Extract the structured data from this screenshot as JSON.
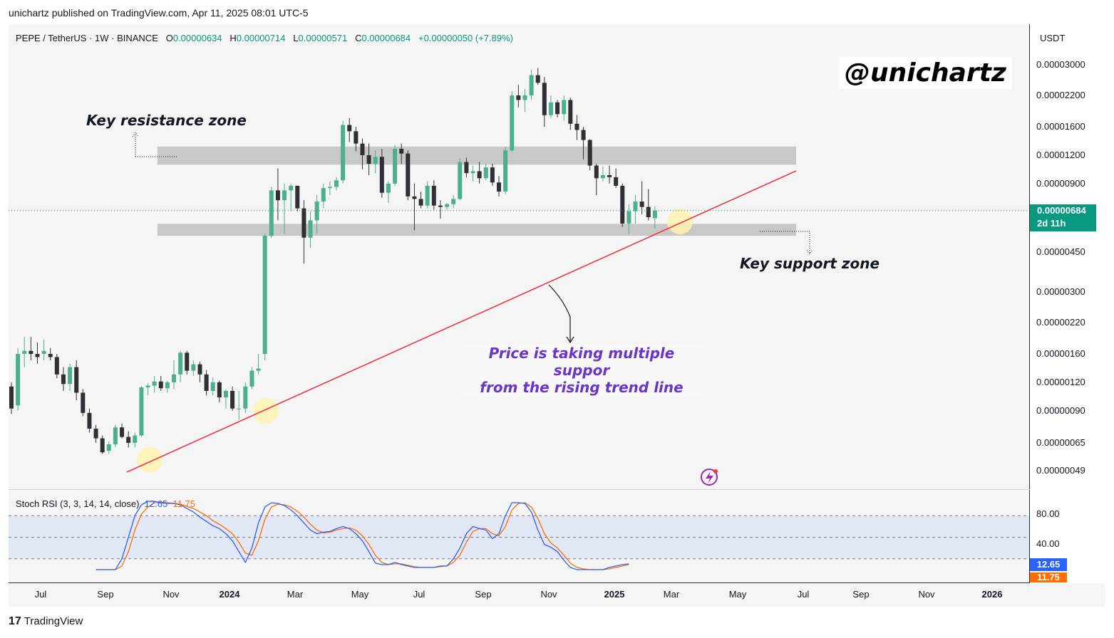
{
  "header": {
    "published": "unichartz published on TradingView.com, Apr 11, 2025 08:01 UTC-5"
  },
  "legend": {
    "symbol": "PEPE / TetherUS · 1W · BINANCE",
    "o_label": "O",
    "o": "0.00000634",
    "h_label": "H",
    "h": "0.00000714",
    "l_label": "L",
    "l": "0.00000571",
    "c_label": "C",
    "c": "0.00000684",
    "change": "+0.00000050 (+7.89%)"
  },
  "currency": "USDT",
  "watermark": "@unichartz",
  "annotations": {
    "resistance": "Key resistance zone",
    "support": "Key support zone",
    "trend_line_1": "Price is taking multiple suppor",
    "trend_line_2": "from the rising trend line"
  },
  "price_badge": {
    "price": "0.00000684",
    "countdown": "2d 11h"
  },
  "stoch": {
    "label": "Stoch RSI (3, 3, 14, 14, close)",
    "k_value": "12.65",
    "d_value": "11.75",
    "ticks": [
      "80.00",
      "40.00"
    ],
    "k_color": "#2962ff",
    "d_color": "#ff6d00"
  },
  "colors": {
    "up": "#4caf8f",
    "down": "#2f2f35",
    "trend": "#f23645",
    "zone": "#c8c8c8",
    "highlight": "#fff3b0"
  },
  "footer": {
    "brand": "TradingView",
    "logo": "tv-logo-icon"
  },
  "chart_data": {
    "type": "candlestick",
    "title": "PEPE / TetherUS · 1W · BINANCE",
    "scale": "log",
    "y_ticks": [
      "0.00003000",
      "0.00002200",
      "0.00001600",
      "0.00001200",
      "0.00000900",
      "0.00000684",
      "0.00000450",
      "0.00000300",
      "0.00000220",
      "0.00000160",
      "0.00000120",
      "0.00000090",
      "0.00000065",
      "0.00000049"
    ],
    "x_ticks": [
      "Jul",
      "Sep",
      "Nov",
      "2024",
      "Mar",
      "May",
      "Jul",
      "Sep",
      "Nov",
      "2025",
      "Mar",
      "May",
      "Jul",
      "Sep",
      "Nov",
      "2026"
    ],
    "candles": [
      {
        "o": 1.15e-06,
        "h": 1.2e-06,
        "l": 8.7e-07,
        "c": 9.2e-07
      },
      {
        "o": 9.5e-07,
        "h": 1.7e-06,
        "l": 9e-07,
        "c": 1.6e-06
      },
      {
        "o": 1.6e-06,
        "h": 1.9e-06,
        "l": 1.4e-06,
        "c": 1.65e-06
      },
      {
        "o": 1.65e-06,
        "h": 1.9e-06,
        "l": 1.5e-06,
        "c": 1.6e-06
      },
      {
        "o": 1.6e-06,
        "h": 1.8e-06,
        "l": 1.45e-06,
        "c": 1.55e-06
      },
      {
        "o": 1.6e-06,
        "h": 1.85e-06,
        "l": 1.5e-06,
        "c": 1.65e-06
      },
      {
        "o": 1.6e-06,
        "h": 1.7e-06,
        "l": 1.5e-06,
        "c": 1.55e-06
      },
      {
        "o": 1.55e-06,
        "h": 1.6e-06,
        "l": 1.25e-06,
        "c": 1.3e-06
      },
      {
        "o": 1.3e-06,
        "h": 1.4e-06,
        "l": 1.1e-06,
        "c": 1.18e-06
      },
      {
        "o": 1.18e-06,
        "h": 1.45e-06,
        "l": 1.1e-06,
        "c": 1.4e-06
      },
      {
        "o": 1.4e-06,
        "h": 1.5e-06,
        "l": 1e-06,
        "c": 1.08e-06
      },
      {
        "o": 1.08e-06,
        "h": 1.12e-06,
        "l": 8.5e-07,
        "c": 8.8e-07
      },
      {
        "o": 8.8e-07,
        "h": 9.2e-07,
        "l": 7.2e-07,
        "c": 7.5e-07
      },
      {
        "o": 7.5e-07,
        "h": 7.8e-07,
        "l": 6.5e-07,
        "c": 6.8e-07
      },
      {
        "o": 6.8e-07,
        "h": 7e-07,
        "l": 5.8e-07,
        "c": 5.9e-07
      },
      {
        "o": 6e-07,
        "h": 6.6e-07,
        "l": 5.8e-07,
        "c": 6.4e-07
      },
      {
        "o": 6.4e-07,
        "h": 7.8e-07,
        "l": 6.2e-07,
        "c": 7.6e-07
      },
      {
        "o": 7.6e-07,
        "h": 7.9e-07,
        "l": 6.8e-07,
        "c": 6.9e-07
      },
      {
        "o": 6.9e-07,
        "h": 7.3e-07,
        "l": 6.2e-07,
        "c": 6.5e-07
      },
      {
        "o": 6.5e-07,
        "h": 7.2e-07,
        "l": 6.2e-07,
        "c": 7e-07
      },
      {
        "o": 7e-07,
        "h": 1.16e-06,
        "l": 6.9e-07,
        "c": 1.14e-06
      },
      {
        "o": 1.14e-06,
        "h": 1.19e-06,
        "l": 1.05e-06,
        "c": 1.16e-06
      },
      {
        "o": 1.16e-06,
        "h": 1.28e-06,
        "l": 1.08e-06,
        "c": 1.21e-06
      },
      {
        "o": 1.21e-06,
        "h": 1.28e-06,
        "l": 1.1e-06,
        "c": 1.13e-06
      },
      {
        "o": 1.13e-06,
        "h": 1.22e-06,
        "l": 1.08e-06,
        "c": 1.2e-06
      },
      {
        "o": 1.2e-06,
        "h": 1.5e-06,
        "l": 1.12e-06,
        "c": 1.3e-06
      },
      {
        "o": 1.3e-06,
        "h": 1.65e-06,
        "l": 1.2e-06,
        "c": 1.62e-06
      },
      {
        "o": 1.62e-06,
        "h": 1.65e-06,
        "l": 1.3e-06,
        "c": 1.35e-06
      },
      {
        "o": 1.35e-06,
        "h": 1.5e-06,
        "l": 1.28e-06,
        "c": 1.44e-06
      },
      {
        "o": 1.44e-06,
        "h": 1.48e-06,
        "l": 1.2e-06,
        "c": 1.3e-06
      },
      {
        "o": 1.3e-06,
        "h": 1.36e-06,
        "l": 1.05e-06,
        "c": 1.1e-06
      },
      {
        "o": 1.1e-06,
        "h": 1.26e-06,
        "l": 1.05e-06,
        "c": 1.2e-06
      },
      {
        "o": 1.2e-06,
        "h": 1.22e-06,
        "l": 9.8e-07,
        "c": 1.03e-06
      },
      {
        "o": 1.03e-06,
        "h": 1.12e-06,
        "l": 9.2e-07,
        "c": 1.1e-06
      },
      {
        "o": 1.1e-06,
        "h": 1.15e-06,
        "l": 9e-07,
        "c": 9.2e-07
      },
      {
        "o": 9.2e-07,
        "h": 1.1e-06,
        "l": 8.2e-07,
        "c": 9.2e-07
      },
      {
        "o": 9.2e-07,
        "h": 1.2e-06,
        "l": 8.8e-07,
        "c": 1.15e-06
      },
      {
        "o": 1.15e-06,
        "h": 1.4e-06,
        "l": 1.12e-06,
        "c": 1.35e-06
      },
      {
        "o": 1.35e-06,
        "h": 1.6e-06,
        "l": 1.3e-06,
        "c": 1.38e-06
      },
      {
        "o": 1.6e-06,
        "h": 5.4e-06,
        "l": 1.5e-06,
        "c": 5.3e-06
      },
      {
        "o": 5.3e-06,
        "h": 8.7e-06,
        "l": 5.2e-06,
        "c": 8.4e-06
      },
      {
        "o": 8.4e-06,
        "h": 1.05e-05,
        "l": 6.2e-06,
        "c": 7.6e-06
      },
      {
        "o": 7.6e-06,
        "h": 9e-06,
        "l": 5.4e-06,
        "c": 8.4e-06
      },
      {
        "o": 8.4e-06,
        "h": 9e-06,
        "l": 6.8e-06,
        "c": 8.8e-06
      },
      {
        "o": 8.8e-06,
        "h": 8.8e-06,
        "l": 6.8e-06,
        "c": 7e-06
      },
      {
        "o": 7e-06,
        "h": 7.6e-06,
        "l": 4e-06,
        "c": 5.2e-06
      },
      {
        "o": 5.2e-06,
        "h": 6.8e-06,
        "l": 4.7e-06,
        "c": 6.2e-06
      },
      {
        "o": 6.2e-06,
        "h": 8e-06,
        "l": 5.4e-06,
        "c": 7.5e-06
      },
      {
        "o": 7.5e-06,
        "h": 9e-06,
        "l": 7e-06,
        "c": 8.6e-06
      },
      {
        "o": 8.6e-06,
        "h": 9.2e-06,
        "l": 8e-06,
        "c": 8.7e-06
      },
      {
        "o": 8.7e-06,
        "h": 9.6e-06,
        "l": 8.4e-06,
        "c": 9.3e-06
      },
      {
        "o": 9.3e-06,
        "h": 1.7e-05,
        "l": 9e-06,
        "c": 1.63e-05
      },
      {
        "o": 1.63e-05,
        "h": 1.75e-05,
        "l": 1.37e-05,
        "c": 1.53e-05
      },
      {
        "o": 1.53e-05,
        "h": 1.6e-05,
        "l": 1.25e-05,
        "c": 1.35e-05
      },
      {
        "o": 1.35e-05,
        "h": 1.42e-05,
        "l": 1.04e-05,
        "c": 1.2e-05
      },
      {
        "o": 1.2e-05,
        "h": 1.35e-05,
        "l": 9.8e-06,
        "c": 1.1e-05
      },
      {
        "o": 1.1e-05,
        "h": 1.26e-05,
        "l": 1e-05,
        "c": 1.18e-05
      },
      {
        "o": 1.18e-05,
        "h": 1.28e-05,
        "l": 7.8e-06,
        "c": 8.2e-06
      },
      {
        "o": 8.2e-06,
        "h": 9.2e-06,
        "l": 7.4e-06,
        "c": 9e-06
      },
      {
        "o": 9e-06,
        "h": 1.33e-05,
        "l": 8.8e-06,
        "c": 1.28e-05
      },
      {
        "o": 1.28e-05,
        "h": 1.35e-05,
        "l": 1.1e-05,
        "c": 1.22e-05
      },
      {
        "o": 1.22e-05,
        "h": 1.26e-05,
        "l": 7.6e-06,
        "c": 7.9e-06
      },
      {
        "o": 7.9e-06,
        "h": 9e-06,
        "l": 5.6e-06,
        "c": 7.7e-06
      },
      {
        "o": 7.7e-06,
        "h": 8.3e-06,
        "l": 7e-06,
        "c": 7.2e-06
      },
      {
        "o": 7.2e-06,
        "h": 9.2e-06,
        "l": 7e-06,
        "c": 8.8e-06
      },
      {
        "o": 8.8e-06,
        "h": 9.3e-06,
        "l": 6.9e-06,
        "c": 7.2e-06
      },
      {
        "o": 7.2e-06,
        "h": 7.6e-06,
        "l": 6.3e-06,
        "c": 7.1e-06
      },
      {
        "o": 7.1e-06,
        "h": 7.4e-06,
        "l": 6.9e-06,
        "c": 7.3e-06
      },
      {
        "o": 7.3e-06,
        "h": 8e-06,
        "l": 7e-06,
        "c": 7.7e-06
      },
      {
        "o": 7.7e-06,
        "h": 1.16e-05,
        "l": 7.6e-06,
        "c": 1.12e-05
      },
      {
        "o": 1.12e-05,
        "h": 1.17e-05,
        "l": 9.6e-06,
        "c": 1e-05
      },
      {
        "o": 1e-05,
        "h": 1.08e-05,
        "l": 9.2e-06,
        "c": 1.02e-05
      },
      {
        "o": 1.02e-05,
        "h": 1.12e-05,
        "l": 9e-06,
        "c": 9.5e-06
      },
      {
        "o": 9.5e-06,
        "h": 1.1e-05,
        "l": 9.3e-06,
        "c": 1.06e-05
      },
      {
        "o": 1.06e-05,
        "h": 1.1e-05,
        "l": 8.8e-06,
        "c": 9.1e-06
      },
      {
        "o": 9.1e-06,
        "h": 9.7e-06,
        "l": 7.9e-06,
        "c": 8.3e-06
      },
      {
        "o": 8.3e-06,
        "h": 1.3e-05,
        "l": 8.1e-06,
        "c": 1.26e-05
      },
      {
        "o": 1.26e-05,
        "h": 2.3e-05,
        "l": 1.24e-05,
        "c": 2.2e-05
      },
      {
        "o": 2.2e-05,
        "h": 2.45e-05,
        "l": 1.95e-05,
        "c": 2.1e-05
      },
      {
        "o": 2.1e-05,
        "h": 2.35e-05,
        "l": 1.86e-05,
        "c": 2.2e-05
      },
      {
        "o": 2.2e-05,
        "h": 2.85e-05,
        "l": 2.1e-05,
        "c": 2.7e-05
      },
      {
        "o": 2.7e-05,
        "h": 2.9e-05,
        "l": 2.45e-05,
        "c": 2.5e-05
      },
      {
        "o": 2.5e-05,
        "h": 2.65e-05,
        "l": 1.6e-05,
        "c": 1.8e-05
      },
      {
        "o": 1.8e-05,
        "h": 2.2e-05,
        "l": 1.75e-05,
        "c": 2.05e-05
      },
      {
        "o": 2.05e-05,
        "h": 2.1e-05,
        "l": 1.76e-05,
        "c": 1.82e-05
      },
      {
        "o": 1.82e-05,
        "h": 2.2e-05,
        "l": 1.7e-05,
        "c": 2.1e-05
      },
      {
        "o": 2.1e-05,
        "h": 2.15e-05,
        "l": 1.55e-05,
        "c": 1.65e-05
      },
      {
        "o": 1.65e-05,
        "h": 1.8e-05,
        "l": 1.4e-05,
        "c": 1.55e-05
      },
      {
        "o": 1.55e-05,
        "h": 1.6e-05,
        "l": 1.15e-05,
        "c": 1.4e-05
      },
      {
        "o": 1.4e-05,
        "h": 1.41e-05,
        "l": 1.03e-05,
        "c": 1.08e-05
      },
      {
        "o": 1.08e-05,
        "h": 1.1e-05,
        "l": 8e-06,
        "c": 9.5e-06
      },
      {
        "o": 9.5e-06,
        "h": 1.07e-05,
        "l": 9.2e-06,
        "c": 9.8e-06
      },
      {
        "o": 9.8e-06,
        "h": 1.08e-05,
        "l": 9e-06,
        "c": 9.6e-06
      },
      {
        "o": 9.6e-06,
        "h": 1.05e-05,
        "l": 8.6e-06,
        "c": 8.8e-06
      },
      {
        "o": 8.8e-06,
        "h": 9e-06,
        "l": 5.8e-06,
        "c": 6e-06
      },
      {
        "o": 6e-06,
        "h": 7.3e-06,
        "l": 5.4e-06,
        "c": 6.8e-06
      },
      {
        "o": 6.8e-06,
        "h": 8e-06,
        "l": 6e-06,
        "c": 7.5e-06
      },
      {
        "o": 7.5e-06,
        "h": 9.2e-06,
        "l": 6.6e-06,
        "c": 7.1e-06
      },
      {
        "o": 7.1e-06,
        "h": 8.5e-06,
        "l": 6.2e-06,
        "c": 6.4e-06
      },
      {
        "o": 6.34e-06,
        "h": 7.14e-06,
        "l": 5.71e-06,
        "c": 6.84e-06
      }
    ],
    "zones": [
      {
        "name": "resistance",
        "low": 1.09e-05,
        "high": 1.31e-05
      },
      {
        "name": "support",
        "low": 5.3e-06,
        "high": 5.98e-06
      }
    ],
    "stoch_k": [
      5,
      5,
      5,
      5,
      20,
      50,
      80,
      95,
      100,
      100,
      98,
      97,
      97,
      95,
      90,
      85,
      78,
      72,
      66,
      62,
      55,
      45,
      30,
      15,
      35,
      70,
      92,
      98,
      97,
      94,
      88,
      80,
      70,
      60,
      55,
      57,
      58,
      62,
      65,
      62,
      55,
      45,
      30,
      14,
      12,
      12,
      15,
      12,
      10,
      8,
      8,
      8,
      8,
      10,
      10,
      20,
      35,
      55,
      65,
      62,
      60,
      48,
      55,
      80,
      98,
      98,
      97,
      85,
      60,
      40,
      36,
      30,
      18,
      8,
      5,
      5,
      5,
      5,
      5,
      8,
      10,
      12,
      13
    ],
    "stoch_d": [
      5,
      5,
      5,
      5,
      10,
      30,
      60,
      82,
      92,
      98,
      99,
      98,
      97,
      96,
      93,
      90,
      85,
      80,
      73,
      68,
      62,
      55,
      43,
      28,
      25,
      45,
      75,
      92,
      96,
      95,
      92,
      86,
      78,
      68,
      60,
      56,
      57,
      60,
      62,
      63,
      60,
      52,
      40,
      25,
      15,
      12,
      13,
      13,
      11,
      9,
      8,
      8,
      8,
      9,
      10,
      15,
      25,
      43,
      58,
      62,
      62,
      55,
      52,
      65,
      88,
      97,
      98,
      92,
      76,
      55,
      42,
      35,
      25,
      14,
      8,
      6,
      5,
      5,
      5,
      6,
      8,
      10,
      12
    ]
  }
}
